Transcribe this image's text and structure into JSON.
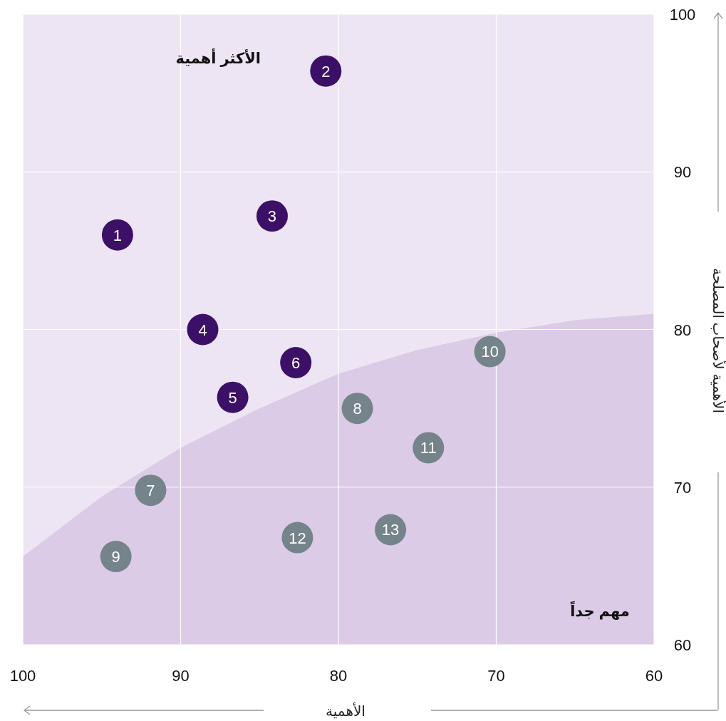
{
  "chart_data": {
    "type": "scatter",
    "xlabel": "الأهمية",
    "ylabel": "الأهمية لأصحاب المصلحة",
    "xlim": [
      100,
      60
    ],
    "ylim": [
      60,
      100
    ],
    "xticks": [
      100,
      90,
      80,
      70,
      60
    ],
    "yticks": [
      60,
      70,
      80,
      90,
      100
    ],
    "grid": true,
    "series": [
      {
        "type": "area",
        "color": "#dccbe6",
        "x": [
          100,
          95,
          90,
          85,
          80,
          75,
          70,
          65,
          60
        ],
        "values": [
          65.6,
          69.4,
          72.5,
          75.0,
          77.2,
          78.7,
          79.8,
          80.6,
          81.0
        ]
      },
      {
        "color": "#3c1066",
        "marker": "circle",
        "x": [
          94.0,
          80.8,
          84.2,
          88.6,
          86.7,
          82.7
        ],
        "values": [
          86.0,
          96.4,
          87.2,
          80.0,
          75.7,
          77.9
        ]
      },
      {
        "color": "#75838b",
        "marker": "circle",
        "x": [
          91.9,
          78.8,
          94.1,
          70.4,
          74.3,
          82.6,
          76.7
        ],
        "values": [
          69.8,
          75.0,
          65.6,
          78.6,
          72.5,
          66.8,
          67.3
        ]
      }
    ],
    "annotations": [
      "الأكثر أهمية",
      "مهم جداً",
      {
        "text": "1",
        "x": 94.0,
        "y": 86.0
      },
      {
        "text": "2",
        "x": 80.8,
        "y": 96.4
      },
      {
        "text": "3",
        "x": 84.2,
        "y": 87.2
      },
      {
        "text": "4",
        "x": 88.6,
        "y": 80.0
      },
      {
        "text": "5",
        "x": 86.7,
        "y": 75.7
      },
      {
        "text": "6",
        "x": 82.7,
        "y": 77.9
      },
      {
        "text": "7",
        "x": 91.9,
        "y": 69.8
      },
      {
        "text": "8",
        "x": 78.8,
        "y": 75.0
      },
      {
        "text": "9",
        "x": 94.1,
        "y": 65.6
      },
      {
        "text": "10",
        "x": 70.4,
        "y": 78.6
      },
      {
        "text": "11",
        "x": 74.3,
        "y": 72.5
      },
      {
        "text": "12",
        "x": 82.6,
        "y": 66.8
      },
      {
        "text": "13",
        "x": 76.7,
        "y": 67.3
      }
    ]
  }
}
